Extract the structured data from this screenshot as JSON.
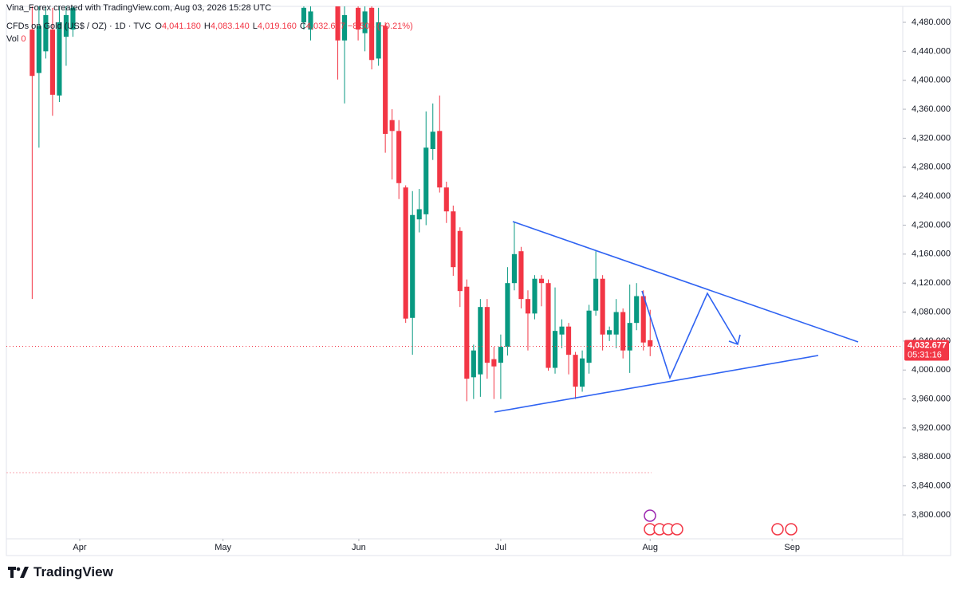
{
  "chart_data": {
    "type": "candlestick",
    "credit": "Vina_Forex created with TradingView.com, Aug 03, 2026 15:28 UTC",
    "symbol": "CFDs on Gold (US$ / OZ) · 1D · TVC",
    "legend_ohlc": [
      {
        "label": "O",
        "value": "4,041.180"
      },
      {
        "label": "H",
        "value": "4,083.140"
      },
      {
        "label": "L",
        "value": "4,019.160"
      },
      {
        "label": "C",
        "value": "4,032.677"
      }
    ],
    "change": "−8.503 (−0.21%)",
    "volume_label": "Vol",
    "volume": 0,
    "last_price_label": "4,032.677",
    "countdown": "05:31:16",
    "brand": "TradingView",
    "up_color": "#089981",
    "down_color": "#f23645",
    "grid": false,
    "x": [
      6,
      7,
      8,
      9,
      10,
      11,
      12,
      46,
      47,
      51,
      52,
      54,
      55,
      56,
      57,
      58,
      59,
      60,
      61,
      62,
      63,
      64,
      65,
      66,
      67,
      68,
      69,
      70,
      71,
      72,
      73,
      74,
      75,
      76,
      77,
      78,
      79,
      80,
      81,
      82,
      83,
      84,
      85,
      86,
      87,
      88,
      89,
      90,
      91,
      92,
      93,
      94,
      95,
      96,
      97
    ],
    "open": [
      4470,
      4410,
      4440,
      4470,
      4379,
      4460,
      4470,
      4480,
      4470,
      4510,
      4455,
      4500,
      4465,
      4500,
      4430,
      4475,
      4345,
      4330,
      4252,
      4072,
      4208,
      4215,
      4305,
      4330,
      4252,
      4219,
      4192,
      4115,
      3990,
      3994,
      4087,
      4015,
      4010,
      4032,
      4120,
      4164,
      4098,
      4078,
      4126,
      4120,
      4003,
      4049,
      4060,
      4021,
      3977,
      4010,
      4082,
      4126,
      4049,
      4049,
      4080,
      4027,
      4065,
      4102,
      4041.18
    ],
    "high": [
      4510,
      4520,
      4520,
      4500,
      4520,
      4520,
      4520,
      4520,
      4520,
      4520,
      4520,
      4520,
      4520,
      4520,
      4500,
      4480,
      4360,
      4345,
      4255,
      4247,
      4250,
      4357,
      4368,
      4379,
      4260,
      4227,
      4197,
      4125,
      4035,
      4098,
      4098,
      4032,
      4049,
      4142,
      4205,
      4170,
      4110,
      4131,
      4131,
      4125,
      4114,
      4070,
      4065,
      4025,
      4027,
      4090,
      4164,
      4131,
      4060,
      4098,
      4085,
      4118,
      4120,
      4110,
      4083.14
    ],
    "low": [
      4098,
      4307,
      4430,
      4351,
      4370,
      4420,
      4460,
      4470,
      4455,
      4401,
      4368,
      4455,
      4440,
      4415,
      4420,
      4300,
      4263,
      4236,
      4065,
      4021,
      4190,
      4200,
      4290,
      4245,
      4203,
      4130,
      4087,
      3957,
      3960,
      3963,
      3988,
      3960,
      3960,
      4020,
      4110,
      4085,
      4027,
      4070,
      4088,
      3999,
      3995,
      4030,
      3994,
      3960,
      3970,
      3995,
      4075,
      4027,
      4040,
      4030,
      4016,
      3996,
      4055,
      4027,
      4019.16
    ],
    "close": [
      4406,
      4475,
      4490,
      4380,
      4480,
      4490,
      4500,
      4500,
      4495,
      4455,
      4490,
      4470,
      4495,
      4428,
      4480,
      4326,
      4330,
      4258,
      4071,
      4214,
      4222,
      4307,
      4329,
      4252,
      4219,
      4142,
      4109,
      3988,
      4027,
      4087,
      4010,
      4005,
      4032,
      4120,
      4160,
      4098,
      4078,
      4126,
      4120,
      4003,
      4054,
      4060,
      4021,
      3977,
      4016,
      4082,
      4126,
      4049,
      4055,
      4080,
      4027,
      4065,
      4102,
      4038,
      4032.677
    ],
    "xlim": [
      2.2,
      134.2
    ],
    "xticks": [
      {
        "value": 13,
        "label": "Apr"
      },
      {
        "value": 34.1,
        "label": "May"
      },
      {
        "value": 54.1,
        "label": "Jun"
      },
      {
        "value": 75,
        "label": "Jul"
      },
      {
        "value": 97,
        "label": "Aug"
      },
      {
        "value": 117.9,
        "label": "Sep"
      }
    ],
    "ylim": [
      3767,
      4502
    ],
    "yticks": [
      {
        "value": 3800,
        "label": "3,800.000"
      },
      {
        "value": 3840,
        "label": "3,840.000"
      },
      {
        "value": 3880,
        "label": "3,880.000"
      },
      {
        "value": 3920,
        "label": "3,920.000"
      },
      {
        "value": 3960,
        "label": "3,960.000"
      },
      {
        "value": 4000,
        "label": "4,000.000"
      },
      {
        "value": 4040,
        "label": "4,040.000"
      },
      {
        "value": 4080,
        "label": "4,080.000"
      },
      {
        "value": 4120,
        "label": "4,120.000"
      },
      {
        "value": 4160,
        "label": "4,160.000"
      },
      {
        "value": 4200,
        "label": "4,200.000"
      },
      {
        "value": 4240,
        "label": "4,240.000"
      },
      {
        "value": 4280,
        "label": "4,280.000"
      },
      {
        "value": 4320,
        "label": "4,320.000"
      },
      {
        "value": 4360,
        "label": "4,360.000"
      },
      {
        "value": 4400,
        "label": "4,400.000"
      },
      {
        "value": 4440,
        "label": "4,440.000"
      },
      {
        "value": 4480,
        "label": "4,480.000"
      }
    ]
  }
}
